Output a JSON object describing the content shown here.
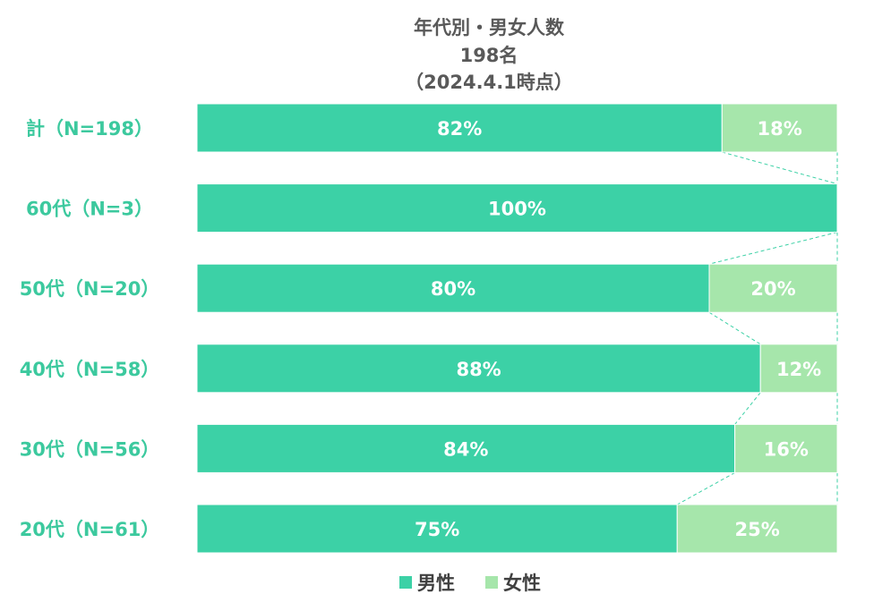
{
  "chart_data": {
    "type": "bar",
    "orientation": "horizontal",
    "stacked": "percent",
    "title": [
      "年代別・男女人数",
      "198名",
      "（2024.4.1時点）"
    ],
    "categories": [
      "計（N=198）",
      "60代（N=3）",
      "50代（N=20）",
      "40代（N=58）",
      "30代（N=56）",
      "20代（N=61）"
    ],
    "series": [
      {
        "name": "男性",
        "values": [
          82,
          100,
          80,
          88,
          84,
          75
        ],
        "labels": [
          "82%",
          "100%",
          "80%",
          "88%",
          "84%",
          "75%"
        ]
      },
      {
        "name": "女性",
        "values": [
          18,
          0,
          20,
          12,
          16,
          25
        ],
        "labels": [
          "18%",
          "",
          "20%",
          "12%",
          "16%",
          "25%"
        ]
      }
    ],
    "xlim": [
      0,
      100
    ],
    "grid": false,
    "series_lines": true,
    "legend_position": "bottom",
    "colors": {
      "男性": "#3cd1a6",
      "女性": "#a6e6ab",
      "category_label": "#3cc99e",
      "connector": "#3cd1a6"
    }
  }
}
